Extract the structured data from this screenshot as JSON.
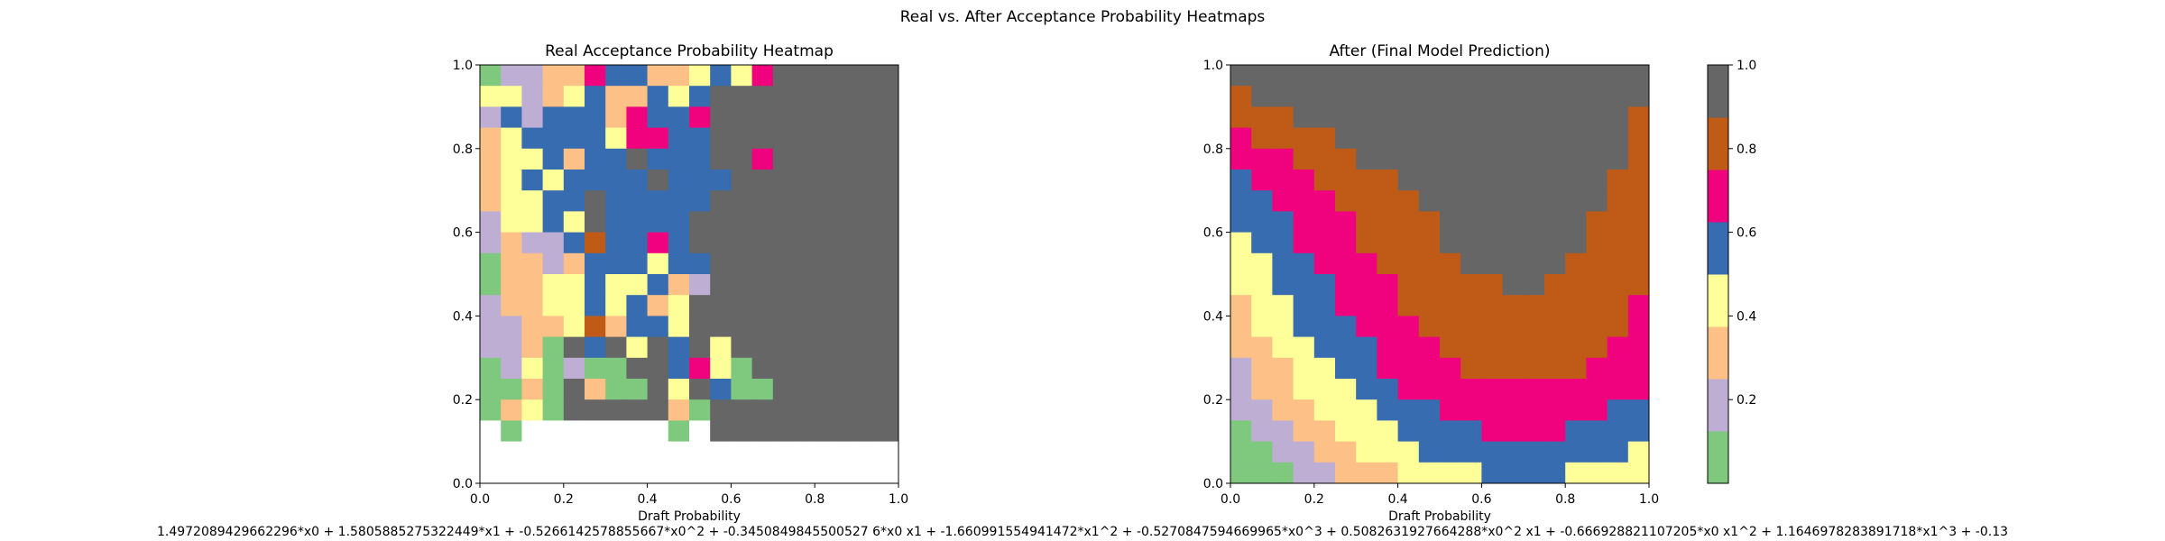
{
  "figure": {
    "suptitle": "Real vs. After Acceptance Probability Heatmaps",
    "footer": "1.4972089429662296*x0 + 1.5805885275322449*x1 + -0.5266142578855667*x0^2 + -0.3450849845500527 6*x0 x1 + -1.660991554941472*x1^2 + -0.5270847594669965*x0^3 + 0.5082631927664288*x0^2 x1 + -0.666928821107205*x0 x1^2 + 1.1646978283891718*x1^3 + -0.13"
  },
  "chart_data": [
    {
      "type": "heatmap",
      "title": "Real Acceptance Probability Heatmap",
      "xlabel": "Draft Probability",
      "ylabel": "",
      "xlim": [
        0,
        1
      ],
      "ylim": [
        0,
        1
      ],
      "xticks": [
        "0.0",
        "0.2",
        "0.4",
        "0.6",
        "0.8",
        "1.0"
      ],
      "yticks": [
        "0.0",
        "0.2",
        "0.4",
        "0.6",
        "0.8",
        "1.0"
      ],
      "grid_size": 20,
      "row_order": "top-to-bottom",
      "rows_level_index": [
        "12233655334546888888",
        "44234533545888888888",
        "25255536556888888888",
        "34555546655888888888",
        "34453558555886888888",
        "34545555855588888888",
        "34455855555888888888",
        "24454855558888888888",
        "23225755658888888888",
        "13323555455888888888",
        "13344544532888888888",
        "23344545348888888888",
        "22334735548888888888",
        "22318584858488888888",
        "12412018856418888888",
        "11318311848511888888",
        "13408888830888888888",
        "01000000010888888888",
        "00000000000000000000",
        "00000000000000000000"
      ],
      "rows_value": [
        "0.14 0.12 0.24 0.36 0.62 0.56 0.72 0.74 0.58 0.72 0.74 0.62 0.86 0.88 0.76 0.88 0.88 0.88 0.88 0.88"
      ]
    },
    {
      "type": "heatmap",
      "title": "After (Final Model Prediction)",
      "xlabel": "Draft Probability",
      "ylabel": "",
      "xlim": [
        0,
        1
      ],
      "ylim": [
        0,
        1
      ],
      "xticks": [
        "0.0",
        "0.2",
        "0.4",
        "0.6",
        "0.8",
        "1.0"
      ],
      "yticks": [
        "0.0",
        "0.2",
        "0.4",
        "0.6",
        "0.8",
        "1.0"
      ],
      "grid_size": 20,
      "colorbar": {
        "ticks": [
          "0.2",
          "0.4",
          "0.6",
          "0.8",
          "1.0"
        ],
        "range": [
          0,
          1
        ],
        "levels": 8
      }
    }
  ],
  "colormap": {
    "name": "Accent",
    "levels": [
      "#7fc97f",
      "#beaed4",
      "#fdc086",
      "#ffff99",
      "#386cb0",
      "#f0027f",
      "#bf5b17",
      "#666666"
    ]
  }
}
